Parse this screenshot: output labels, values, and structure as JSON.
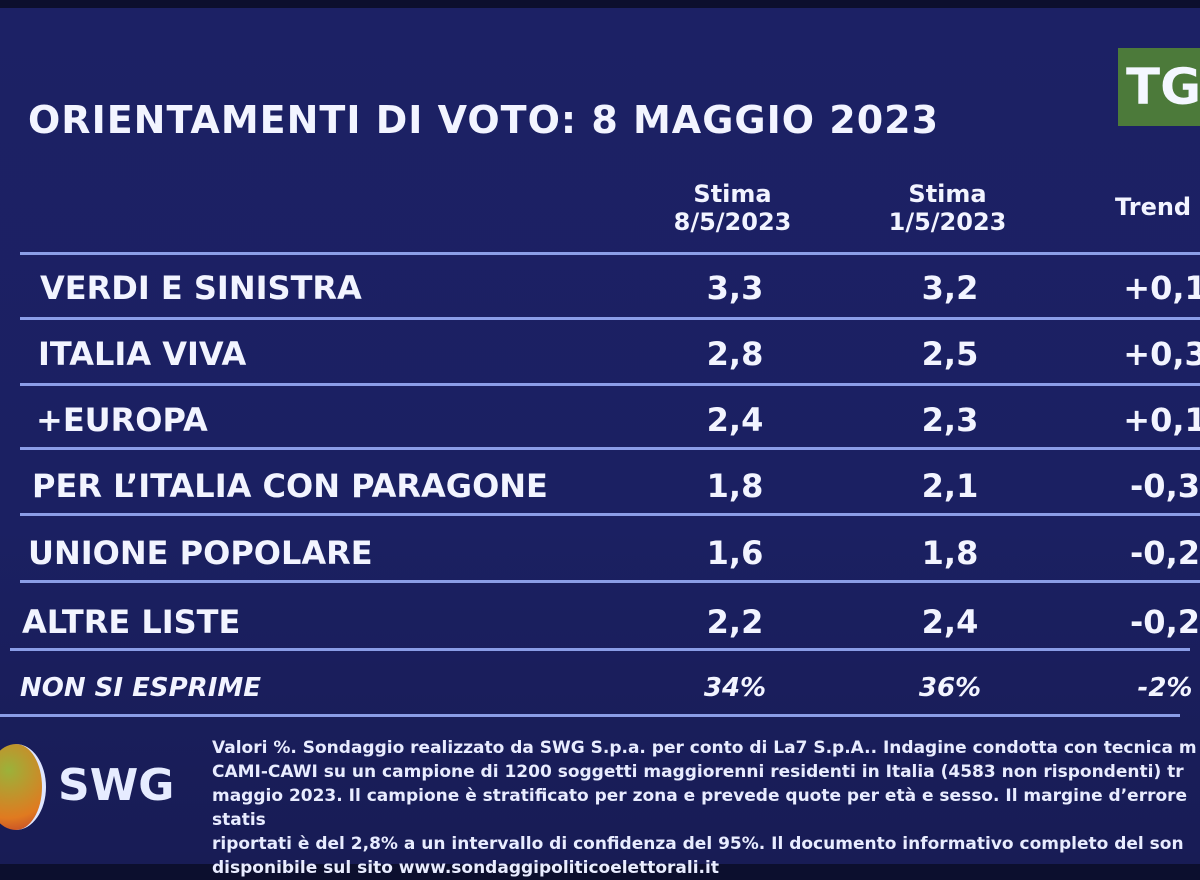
{
  "title": "ORIENTAMENTI DI VOTO: 8 MAGGIO 2023",
  "broadcaster_logo": "TG",
  "chart_data": {
    "type": "table",
    "title": "ORIENTAMENTI DI VOTO: 8 MAGGIO 2023",
    "columns": [
      {
        "line1": "Stima",
        "line2": "8/5/2023"
      },
      {
        "line1": "Stima",
        "line2": "1/5/2023"
      },
      {
        "line1": "Trend",
        "line2": ""
      }
    ],
    "rows": [
      {
        "name": "VERDI E SINISTRA",
        "v1": "3,3",
        "v2": "3,2",
        "trend": "+0,1"
      },
      {
        "name": "ITALIA VIVA",
        "v1": "2,8",
        "v2": "2,5",
        "trend": "+0,3"
      },
      {
        "name": "+EUROPA",
        "v1": "2,4",
        "v2": "2,3",
        "trend": "+0,1"
      },
      {
        "name": "PER L’ITALIA CON PARAGONE",
        "v1": "1,8",
        "v2": "2,1",
        "trend": "-0,3"
      },
      {
        "name": "UNIONE POPOLARE",
        "v1": "1,6",
        "v2": "1,8",
        "trend": "-0,2"
      },
      {
        "name": "ALTRE LISTE",
        "v1": "2,2",
        "v2": "2,4",
        "trend": "-0,2"
      },
      {
        "name": "NON SI ESPRIME",
        "v1": "34%",
        "v2": "36%",
        "trend": "-2%"
      }
    ]
  },
  "footer": {
    "logo": "SWG",
    "note": "Valori %. Sondaggio realizzato da SWG S.p.a. per conto di La7 S.p.A.. Indagine condotta con tecnica m\nCAMI-CAWI su un campione di 1200 soggetti maggiorenni residenti in Italia (4583 non rispondenti) tr\nmaggio 2023. Il campione è stratificato per zona e prevede quote per età e sesso. Il margine d’errore statis\nriportati è del 2,8% a un intervallo di confidenza del 95%. Il documento informativo completo del son\ndisponibile sul sito www.sondaggipoliticoelettorali.it"
  }
}
